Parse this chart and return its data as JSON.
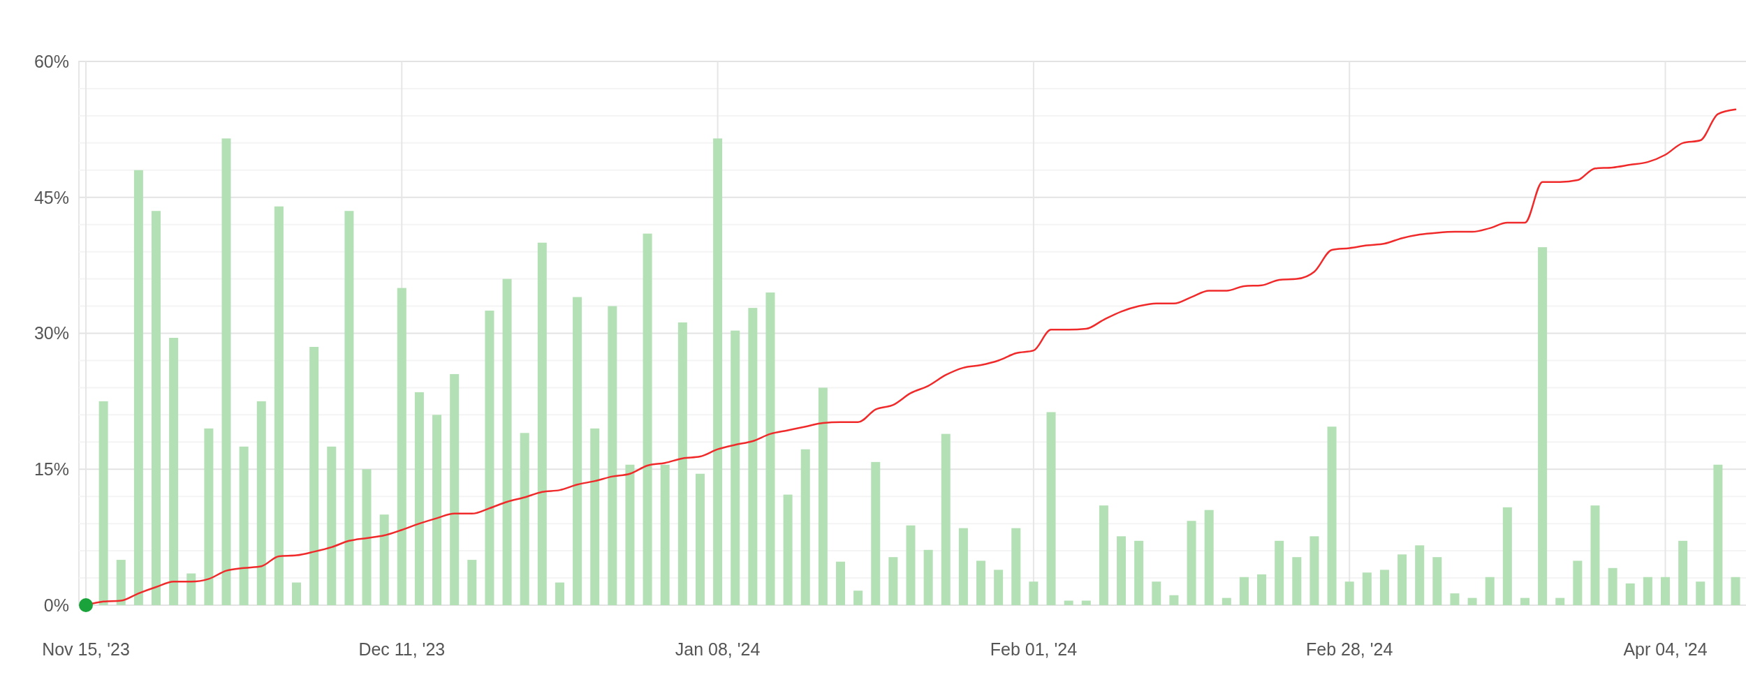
{
  "chart_data": {
    "type": "bar",
    "categories": [
      "Nov 15, '23",
      null,
      null,
      null,
      null,
      null,
      null,
      null,
      null,
      null,
      null,
      null,
      null,
      null,
      null,
      null,
      null,
      null,
      "Dec 11, '23",
      null,
      null,
      null,
      null,
      null,
      null,
      null,
      null,
      null,
      null,
      null,
      null,
      null,
      null,
      null,
      null,
      null,
      "Jan 08, '24",
      null,
      null,
      null,
      null,
      null,
      null,
      null,
      null,
      null,
      null,
      null,
      null,
      null,
      null,
      null,
      null,
      null,
      "Feb 01, '24",
      null,
      null,
      null,
      null,
      null,
      null,
      null,
      null,
      null,
      null,
      null,
      null,
      null,
      null,
      null,
      null,
      null,
      "Feb 28, '24",
      null,
      null,
      null,
      null,
      null,
      null,
      null,
      null,
      null,
      null,
      null,
      null,
      null,
      null,
      null,
      null,
      null,
      "Apr 04, '24",
      null,
      null,
      null,
      null
    ],
    "ylim": [
      0,
      60
    ],
    "yticks": [
      {
        "value": 0,
        "label": "0%"
      },
      {
        "value": 3,
        "label": null
      },
      {
        "value": 6,
        "label": null
      },
      {
        "value": 9,
        "label": null
      },
      {
        "value": 12,
        "label": null
      },
      {
        "value": 15,
        "label": "15%"
      },
      {
        "value": 18,
        "label": null
      },
      {
        "value": 21,
        "label": null
      },
      {
        "value": 24,
        "label": null
      },
      {
        "value": 27,
        "label": null
      },
      {
        "value": 30,
        "label": "30%"
      },
      {
        "value": 33,
        "label": null
      },
      {
        "value": 36,
        "label": null
      },
      {
        "value": 39,
        "label": null
      },
      {
        "value": 42,
        "label": null
      },
      {
        "value": 45,
        "label": "45%"
      },
      {
        "value": 48,
        "label": null
      },
      {
        "value": 51,
        "label": null
      },
      {
        "value": 54,
        "label": null
      },
      {
        "value": 57,
        "label": null
      },
      {
        "value": 60,
        "label": "60%"
      }
    ],
    "grid": true,
    "series": [
      {
        "color": "#b3e0b5",
        "values": [
          null,
          22.5,
          5,
          48,
          43.5,
          29.5,
          3.5,
          19.5,
          51.5,
          17.5,
          22.5,
          44,
          2.5,
          28.5,
          17.5,
          43.5,
          15,
          10,
          35,
          23.5,
          21,
          25.5,
          5,
          32.5,
          36,
          19,
          40,
          2.5,
          34,
          19.5,
          33,
          15.5,
          41,
          15.5,
          31.2,
          14.5,
          51.5,
          30.3,
          32.8,
          34.5,
          12.2,
          17.2,
          24,
          4.8,
          1.6,
          15.8,
          5.3,
          8.8,
          6.1,
          18.9,
          8.5,
          4.9,
          3.9,
          8.5,
          2.6,
          21.3,
          0.5,
          0.5,
          11,
          7.6,
          7.1,
          2.6,
          1.1,
          9.3,
          10.5,
          0.8,
          3.1,
          3.4,
          7.1,
          5.3,
          7.6,
          19.7,
          2.6,
          3.6,
          3.9,
          5.6,
          6.6,
          5.3,
          1.3,
          0.8,
          3.1,
          10.8,
          0.8,
          39.5,
          0.8,
          4.9,
          11,
          4.1,
          2.4,
          3.1,
          3.1,
          7.1,
          2.6,
          15.5,
          3.1
        ]
      },
      {
        "type": "line",
        "color": "#f02a2a",
        "line_style": "solid",
        "marker": "none",
        "values": [
          0,
          0.4,
          0.5,
          1.3,
          2.0,
          2.6,
          2.6,
          2.9,
          3.8,
          4.1,
          4.3,
          5.4,
          5.5,
          5.9,
          6.4,
          7.1,
          7.4,
          7.7,
          8.3,
          9.0,
          9.6,
          10.1,
          10.1,
          10.7,
          11.4,
          11.9,
          12.5,
          12.7,
          13.3,
          13.7,
          14.2,
          14.5,
          15.4,
          15.7,
          16.2,
          16.4,
          17.2,
          17.7,
          18.1,
          18.9,
          19.3,
          19.7,
          20.1,
          20.2,
          20.2,
          21.6,
          22.1,
          23.4,
          24.2,
          25.4,
          26.2,
          26.5,
          27.0,
          27.8,
          28.1,
          30.4,
          30.4,
          30.5,
          31.5,
          32.4,
          33.0,
          33.3,
          33.3,
          34.0,
          34.7,
          34.7,
          35.2,
          35.3,
          35.9,
          36.0,
          36.8,
          39.2,
          39.4,
          39.7,
          39.9,
          40.5,
          40.9,
          41.1,
          41.2,
          41.2,
          41.6,
          42.2,
          42.2,
          46.7,
          46.7,
          46.9,
          48.2,
          48.3,
          48.6,
          48.9,
          49.7,
          51.0,
          51.3,
          54.2,
          54.7
        ]
      },
      {
        "type": "scatter",
        "color": "#1aa33a",
        "marker": "circle",
        "values": [
          0,
          null,
          null,
          null,
          null,
          null,
          null,
          null,
          null,
          null,
          null,
          null,
          null,
          null,
          null,
          null,
          null,
          null,
          null,
          null,
          null,
          null,
          null,
          null,
          null,
          null,
          null,
          null,
          null,
          null,
          null,
          null,
          null,
          null,
          null,
          null,
          null,
          null,
          null,
          null,
          null,
          null,
          null,
          null,
          null,
          null,
          null,
          null,
          null,
          null,
          null,
          null,
          null,
          null,
          null,
          null,
          null,
          null,
          null,
          null,
          null,
          null,
          null,
          null,
          null,
          null,
          null,
          null,
          null,
          null,
          null,
          null,
          null,
          null,
          null,
          null,
          null,
          null,
          null,
          null,
          null,
          null,
          null,
          null,
          null,
          null,
          null,
          null,
          null,
          null,
          null,
          null,
          null,
          null,
          null
        ]
      }
    ]
  }
}
